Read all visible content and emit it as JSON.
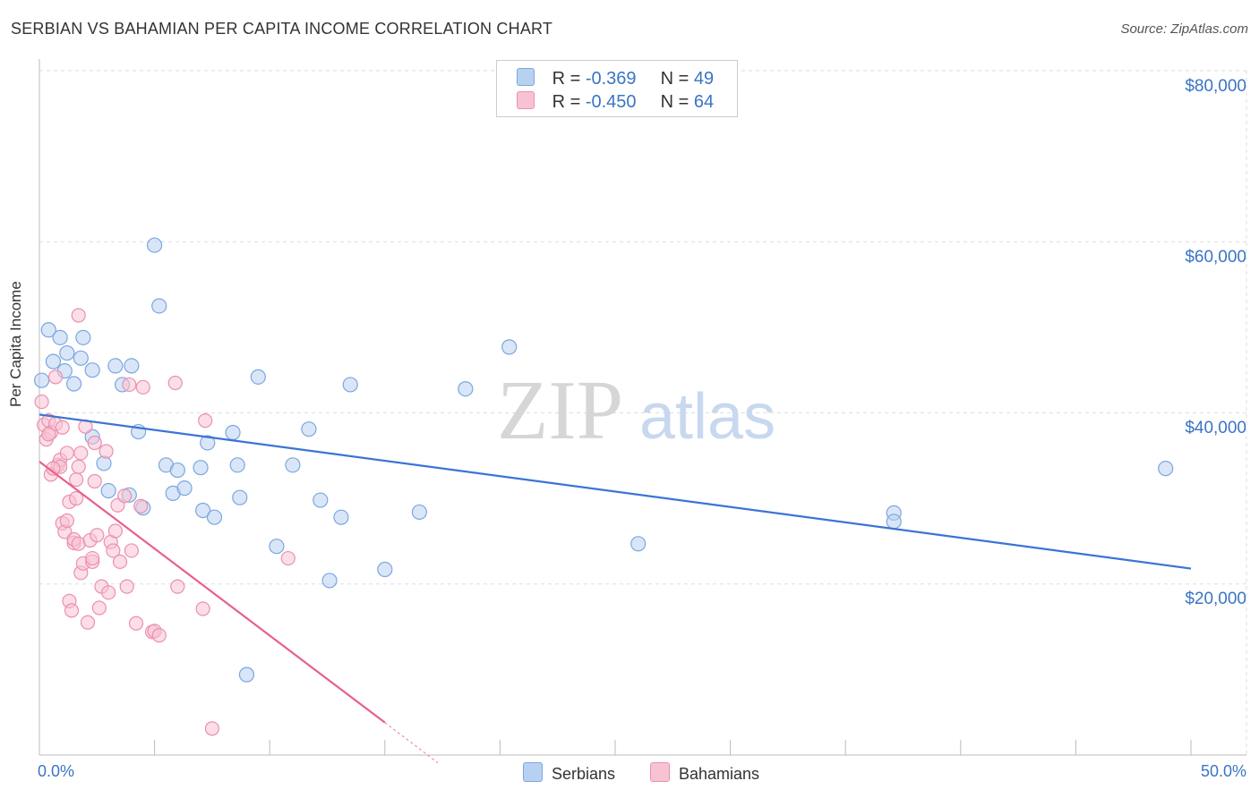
{
  "header": {
    "title": "SERBIAN VS BAHAMIAN PER CAPITA INCOME CORRELATION CHART",
    "source": "Source: ZipAtlas.com"
  },
  "watermark": {
    "zip": "ZIP",
    "atlas": "atlas"
  },
  "legend": {
    "r_label": "R =",
    "n_label": "N =",
    "items": [
      {
        "name": "Serbians",
        "r": "-0.369",
        "n": "49",
        "fill": "#b9d1f1",
        "stroke": "#7aa7e0"
      },
      {
        "name": "Bahamians",
        "r": "-0.450",
        "n": "64",
        "fill": "#f7c3d3",
        "stroke": "#ec8fae"
      }
    ]
  },
  "chart_data": {
    "type": "scatter",
    "title": "SERBIAN VS BAHAMIAN PER CAPITA INCOME CORRELATION CHART",
    "xlabel": "",
    "ylabel": "Per Capita Income",
    "xlim": [
      0,
      50
    ],
    "ylim": [
      0,
      80000
    ],
    "x_tick_labels": [
      "0.0%",
      "50.0%"
    ],
    "y_ticks": [
      20000,
      40000,
      60000,
      80000
    ],
    "y_tick_labels": [
      "$20,000",
      "$40,000",
      "$60,000",
      "$80,000"
    ],
    "grid": true,
    "legend_position": "top-center",
    "series": [
      {
        "name": "Serbians",
        "color": "#3a74d4",
        "fill": "#b9d1f1",
        "stroke": "#7aa7e0",
        "trend": {
          "x": [
            0.0,
            50.0
          ],
          "y": [
            39800,
            21800
          ]
        },
        "points": [
          [
            0.1,
            43800
          ],
          [
            0.4,
            49700
          ],
          [
            0.6,
            46000
          ],
          [
            0.9,
            48800
          ],
          [
            1.1,
            44900
          ],
          [
            1.5,
            43400
          ],
          [
            1.8,
            46400
          ],
          [
            1.9,
            48800
          ],
          [
            2.3,
            45000
          ],
          [
            2.3,
            37200
          ],
          [
            2.8,
            34100
          ],
          [
            3.0,
            30900
          ],
          [
            3.3,
            45500
          ],
          [
            3.6,
            43300
          ],
          [
            3.9,
            30400
          ],
          [
            4.0,
            45500
          ],
          [
            4.3,
            37800
          ],
          [
            4.5,
            28900
          ],
          [
            5.0,
            59600
          ],
          [
            5.2,
            52500
          ],
          [
            5.5,
            33900
          ],
          [
            5.8,
            30600
          ],
          [
            6.0,
            33300
          ],
          [
            6.3,
            31200
          ],
          [
            7.0,
            33600
          ],
          [
            7.1,
            28600
          ],
          [
            7.3,
            36500
          ],
          [
            7.6,
            27800
          ],
          [
            8.4,
            37700
          ],
          [
            8.6,
            33900
          ],
          [
            8.7,
            30100
          ],
          [
            9.0,
            9400
          ],
          [
            9.5,
            44200
          ],
          [
            10.3,
            24400
          ],
          [
            11.0,
            33900
          ],
          [
            11.7,
            38100
          ],
          [
            12.2,
            29800
          ],
          [
            12.6,
            20400
          ],
          [
            13.1,
            27800
          ],
          [
            13.5,
            43300
          ],
          [
            15.0,
            21700
          ],
          [
            16.5,
            28400
          ],
          [
            18.5,
            42800
          ],
          [
            20.4,
            47700
          ],
          [
            26.0,
            24700
          ],
          [
            37.1,
            28300
          ],
          [
            37.1,
            27300
          ],
          [
            48.9,
            33500
          ],
          [
            1.2,
            47000
          ]
        ]
      },
      {
        "name": "Bahamians",
        "color": "#e8608a",
        "fill": "#f7c3d3",
        "stroke": "#ec8fae",
        "trend": {
          "x": [
            0.0,
            15.0
          ],
          "y": [
            34300,
            3800
          ]
        },
        "trend_dashed": {
          "x": [
            15.0,
            17.3
          ],
          "y": [
            3800,
            -900
          ]
        },
        "points": [
          [
            0.1,
            41300
          ],
          [
            0.2,
            38600
          ],
          [
            0.3,
            36900
          ],
          [
            0.4,
            39100
          ],
          [
            0.5,
            37700
          ],
          [
            0.5,
            32800
          ],
          [
            0.7,
            38700
          ],
          [
            0.7,
            44200
          ],
          [
            0.8,
            33900
          ],
          [
            0.9,
            34500
          ],
          [
            0.9,
            33700
          ],
          [
            1.0,
            27100
          ],
          [
            1.0,
            38300
          ],
          [
            1.1,
            26100
          ],
          [
            1.2,
            35300
          ],
          [
            1.2,
            27400
          ],
          [
            1.3,
            29600
          ],
          [
            1.3,
            18000
          ],
          [
            1.4,
            16900
          ],
          [
            1.5,
            24800
          ],
          [
            1.5,
            25200
          ],
          [
            1.6,
            32200
          ],
          [
            1.6,
            30000
          ],
          [
            1.7,
            24700
          ],
          [
            1.7,
            33700
          ],
          [
            1.7,
            51400
          ],
          [
            1.8,
            35300
          ],
          [
            1.8,
            21300
          ],
          [
            1.9,
            22400
          ],
          [
            2.0,
            38400
          ],
          [
            2.1,
            15500
          ],
          [
            2.2,
            25100
          ],
          [
            2.3,
            22600
          ],
          [
            2.3,
            23000
          ],
          [
            2.4,
            32000
          ],
          [
            2.4,
            36500
          ],
          [
            2.5,
            25700
          ],
          [
            2.6,
            17200
          ],
          [
            2.7,
            19700
          ],
          [
            2.9,
            35500
          ],
          [
            3.0,
            19000
          ],
          [
            3.1,
            24900
          ],
          [
            3.2,
            23900
          ],
          [
            3.3,
            26200
          ],
          [
            3.4,
            29200
          ],
          [
            3.5,
            22600
          ],
          [
            3.7,
            30300
          ],
          [
            3.8,
            19700
          ],
          [
            3.9,
            43300
          ],
          [
            4.0,
            23900
          ],
          [
            4.2,
            15400
          ],
          [
            4.4,
            29100
          ],
          [
            4.5,
            43000
          ],
          [
            4.9,
            14400
          ],
          [
            5.0,
            14500
          ],
          [
            5.2,
            14000
          ],
          [
            5.9,
            43500
          ],
          [
            6.0,
            19700
          ],
          [
            7.1,
            17100
          ],
          [
            7.2,
            39100
          ],
          [
            7.5,
            3100
          ],
          [
            10.8,
            23000
          ],
          [
            0.4,
            37500
          ],
          [
            0.6,
            33500
          ]
        ]
      }
    ]
  }
}
